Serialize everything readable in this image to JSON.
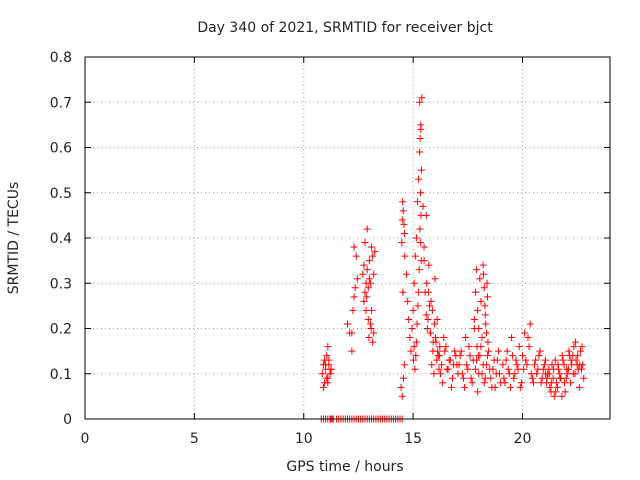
{
  "chart_data": {
    "type": "scatter",
    "title": "Day 340 of 2021, SRMTID for receiver bjct",
    "xlabel": "GPS time / hours",
    "ylabel": "SRMTID / TECUs",
    "xlim": [
      0,
      24
    ],
    "ylim": [
      0,
      0.8
    ],
    "xticks": [
      0,
      5,
      10,
      15,
      20
    ],
    "xtick_labels": [
      "0",
      "5",
      "10",
      "15",
      "20"
    ],
    "yticks": [
      0,
      0.1,
      0.2,
      0.3,
      0.4,
      0.5,
      0.6,
      0.7,
      0.8
    ],
    "ytick_labels": [
      "0",
      "0.1",
      "0.2",
      "0.3",
      "0.4",
      "0.5",
      "0.6",
      "0.7",
      "0.8"
    ],
    "grid": true,
    "marker": "+",
    "color": "#ff0000",
    "series": [
      {
        "name": "SRMTID",
        "x": [
          10.8,
          10.9,
          11.0,
          11.1,
          11.2,
          11.25,
          11.3,
          11.35,
          11.5,
          11.6,
          11.7,
          11.8,
          11.9,
          12.0,
          12.1,
          12.2,
          12.3,
          12.4,
          12.5,
          12.6,
          12.7,
          12.8,
          12.9,
          13.0,
          13.1,
          13.2,
          13.3,
          13.4,
          13.5,
          13.6,
          13.7,
          13.8,
          13.9,
          14.0,
          14.1,
          14.2,
          14.3,
          14.4,
          14.5,
          10.85,
          10.9,
          10.95,
          11.0,
          11.05,
          11.1,
          11.15,
          11.2,
          11.25,
          10.9,
          11.0,
          11.1,
          11.2,
          11.05,
          11.15,
          11.25,
          10.95,
          11.1,
          12.0,
          12.1,
          12.2,
          12.3,
          12.35,
          12.4,
          12.3,
          12.25,
          12.45,
          12.2,
          12.7,
          12.75,
          12.8,
          12.85,
          12.9,
          12.95,
          13.0,
          13.05,
          13.1,
          13.15,
          13.2,
          12.8,
          12.9,
          13.0,
          13.1,
          12.85,
          12.95,
          13.05,
          13.15,
          12.75,
          12.88,
          12.98,
          13.08,
          13.2,
          13.25,
          14.5,
          14.55,
          14.6,
          14.52,
          14.58,
          14.48,
          14.62,
          14.5,
          14.56,
          14.6,
          14.45,
          14.53,
          14.7,
          14.75,
          14.8,
          14.85,
          14.9,
          14.95,
          15.0,
          15.05,
          15.1,
          15.15,
          15.2,
          15.25,
          15.3,
          15.35,
          15.4,
          15.45,
          15.5,
          15.3,
          15.35,
          15.32,
          15.38,
          15.34,
          15.36,
          15.31,
          15.33,
          15.37,
          15.28,
          15.25,
          15.22,
          15.18,
          15.15,
          15.12,
          15.08,
          15.05,
          15.02,
          15.6,
          15.7,
          15.8,
          15.9,
          16.0,
          16.1,
          16.2,
          16.3,
          16.4,
          16.5,
          16.6,
          16.7,
          16.8,
          16.9,
          17.0,
          15.65,
          15.75,
          15.85,
          15.95,
          16.05,
          16.15,
          16.25,
          16.35,
          16.45,
          16.55,
          16.65,
          16.75,
          16.85,
          16.95,
          17.05,
          15.5,
          15.55,
          15.6,
          15.62,
          15.68,
          15.72,
          15.78,
          15.82,
          15.88,
          15.92,
          15.98,
          16.02,
          16.08,
          16.12,
          16.18,
          16.22,
          17.1,
          17.2,
          17.3,
          17.4,
          17.5,
          17.6,
          17.7,
          17.8,
          17.9,
          18.0,
          18.1,
          18.2,
          18.3,
          18.4,
          18.5,
          18.6,
          18.7,
          18.8,
          18.9,
          19.0,
          17.15,
          17.25,
          17.35,
          17.45,
          17.55,
          17.65,
          17.75,
          17.85,
          17.95,
          18.05,
          18.15,
          18.25,
          18.35,
          18.45,
          18.55,
          18.65,
          18.75,
          18.85,
          18.95,
          17.8,
          17.85,
          17.9,
          17.95,
          18.0,
          18.05,
          18.1,
          18.15,
          18.2,
          18.25,
          18.3,
          18.35,
          18.4,
          18.22,
          18.28,
          18.32,
          18.38,
          18.42,
          17.92,
          17.98,
          19.1,
          19.2,
          19.3,
          19.4,
          19.5,
          19.6,
          19.7,
          19.8,
          19.9,
          20.0,
          20.1,
          20.2,
          20.3,
          20.4,
          20.5,
          20.6,
          20.7,
          20.8,
          20.9,
          21.0,
          19.15,
          19.25,
          19.35,
          19.45,
          19.55,
          19.65,
          19.75,
          19.85,
          19.95,
          20.05,
          20.15,
          20.25,
          20.35,
          20.45,
          20.55,
          20.65,
          20.75,
          20.85,
          20.95,
          21.05,
          21.1,
          21.2,
          21.3,
          21.4,
          21.5,
          21.6,
          21.7,
          21.8,
          21.9,
          22.0,
          22.1,
          22.2,
          22.3,
          22.4,
          22.5,
          22.6,
          22.7,
          22.8,
          21.15,
          21.25,
          21.35,
          21.45,
          21.55,
          21.65,
          21.75,
          21.85,
          21.95,
          22.05,
          22.15,
          22.25,
          22.35,
          22.45,
          22.55,
          22.65,
          22.75,
          21.05,
          21.12,
          21.22,
          21.32,
          21.42,
          21.52,
          21.62,
          21.72,
          21.82,
          21.92,
          22.02,
          22.12,
          22.22,
          22.32,
          22.42,
          22.52,
          22.62,
          22.72
        ],
        "y": [
          0,
          0,
          0,
          0,
          0,
          0,
          0,
          0,
          0,
          0,
          0,
          0,
          0,
          0,
          0,
          0,
          0,
          0,
          0,
          0,
          0,
          0,
          0,
          0,
          0,
          0,
          0,
          0,
          0,
          0,
          0,
          0,
          0,
          0,
          0,
          0,
          0,
          0,
          0,
          0.1,
          0.12,
          0.08,
          0.11,
          0.14,
          0.09,
          0.13,
          0.1,
          0.11,
          0.07,
          0.12,
          0.16,
          0.1,
          0.09,
          0.12,
          0.11,
          0.13,
          0.08,
          0.21,
          0.19,
          0.15,
          0.38,
          0.29,
          0.36,
          0.27,
          0.24,
          0.31,
          0.19,
          0.32,
          0.26,
          0.39,
          0.3,
          0.42,
          0.29,
          0.35,
          0.21,
          0.24,
          0.17,
          0.19,
          0.28,
          0.33,
          0.31,
          0.38,
          0.24,
          0.22,
          0.3,
          0.36,
          0.34,
          0.27,
          0.18,
          0.2,
          0.32,
          0.37,
          0.44,
          0.46,
          0.41,
          0.48,
          0.43,
          0.39,
          0.36,
          0.05,
          0.09,
          0.12,
          0.07,
          0.28,
          0.32,
          0.26,
          0.22,
          0.18,
          0.15,
          0.2,
          0.24,
          0.3,
          0.36,
          0.4,
          0.48,
          0.53,
          0.59,
          0.65,
          0.71,
          0.47,
          0.38,
          0.7,
          0.64,
          0.62,
          0.55,
          0.5,
          0.45,
          0.42,
          0.39,
          0.35,
          0.33,
          0.28,
          0.25,
          0.21,
          0.17,
          0.14,
          0.11,
          0.16,
          0.13,
          0.23,
          0.28,
          0.19,
          0.15,
          0.31,
          0.22,
          0.14,
          0.12,
          0.18,
          0.16,
          0.11,
          0.13,
          0.09,
          0.15,
          0.12,
          0.2,
          0.25,
          0.12,
          0.1,
          0.17,
          0.14,
          0.1,
          0.08,
          0.15,
          0.11,
          0.13,
          0.07,
          0.12,
          0.14,
          0.1,
          0.35,
          0.28,
          0.45,
          0.3,
          0.22,
          0.34,
          0.19,
          0.26,
          0.24,
          0.17,
          0.21,
          0.18,
          0.13,
          0.15,
          0.11,
          0.16,
          0.12,
          0.15,
          0.09,
          0.18,
          0.11,
          0.14,
          0.08,
          0.2,
          0.13,
          0.1,
          0.16,
          0.12,
          0.09,
          0.14,
          0.11,
          0.07,
          0.13,
          0.1,
          0.15,
          0.08,
          0.14,
          0.1,
          0.07,
          0.12,
          0.16,
          0.09,
          0.13,
          0.11,
          0.06,
          0.14,
          0.1,
          0.08,
          0.12,
          0.15,
          0.09,
          0.11,
          0.07,
          0.13,
          0.1,
          0.22,
          0.28,
          0.33,
          0.24,
          0.2,
          0.31,
          0.26,
          0.18,
          0.34,
          0.29,
          0.23,
          0.19,
          0.27,
          0.32,
          0.25,
          0.21,
          0.3,
          0.17,
          0.16,
          0.14,
          0.12,
          0.08,
          0.15,
          0.1,
          0.18,
          0.09,
          0.13,
          0.11,
          0.07,
          0.14,
          0.19,
          0.12,
          0.16,
          0.1,
          0.08,
          0.13,
          0.11,
          0.15,
          0.09,
          0.12,
          0.09,
          0.13,
          0.11,
          0.07,
          0.14,
          0.1,
          0.12,
          0.16,
          0.08,
          0.11,
          0.13,
          0.18,
          0.21,
          0.09,
          0.12,
          0.1,
          0.14,
          0.08,
          0.11,
          0.1,
          0.08,
          0.11,
          0.06,
          0.09,
          0.13,
          0.07,
          0.1,
          0.05,
          0.12,
          0.09,
          0.11,
          0.08,
          0.14,
          0.1,
          0.12,
          0.07,
          0.11,
          0.09,
          0.1,
          0.07,
          0.12,
          0.05,
          0.08,
          0.11,
          0.09,
          0.13,
          0.06,
          0.1,
          0.14,
          0.12,
          0.16,
          0.13,
          0.11,
          0.15,
          0.12,
          0.13,
          0.09,
          0.1,
          0.08,
          0.11,
          0.06,
          0.12,
          0.09,
          0.14,
          0.08,
          0.11,
          0.15,
          0.13,
          0.1,
          0.17,
          0.14,
          0.12,
          0.16
        ]
      }
    ]
  }
}
